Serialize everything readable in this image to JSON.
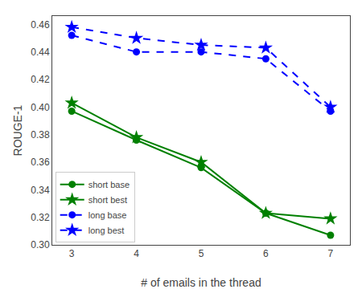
{
  "chart_data": {
    "type": "line",
    "xlabel": "# of emails in the thread",
    "ylabel": "ROUGE-1",
    "x": [
      3,
      4,
      5,
      6,
      7
    ],
    "series": [
      {
        "name": "short base",
        "color": "#008000",
        "marker": "circle",
        "line_style": "solid",
        "values": [
          0.397,
          0.376,
          0.356,
          0.323,
          0.307
        ]
      },
      {
        "name": "short best",
        "color": "#008000",
        "marker": "star",
        "line_style": "solid",
        "values": [
          0.403,
          0.378,
          0.36,
          0.323,
          0.319
        ]
      },
      {
        "name": "long base",
        "color": "#0000FF",
        "marker": "circle",
        "line_style": "dashed",
        "values": [
          0.452,
          0.44,
          0.44,
          0.435,
          0.397
        ]
      },
      {
        "name": "long best",
        "color": "#0000FF",
        "marker": "star",
        "line_style": "dashed",
        "values": [
          0.458,
          0.45,
          0.445,
          0.443,
          0.4
        ]
      }
    ],
    "xlim": [
      2.7,
      7.3
    ],
    "xticks": [
      3,
      4,
      5,
      6,
      7
    ],
    "ylim": [
      0.3,
      0.466
    ],
    "yticks": [
      {
        "value": 0.3,
        "label": "0.30"
      },
      0.32,
      0.34,
      0.36,
      0.38,
      {
        "value": 0.4,
        "label": "0.40"
      },
      0.42,
      0.44,
      0.46
    ],
    "grid": false,
    "legend": "lower left"
  }
}
